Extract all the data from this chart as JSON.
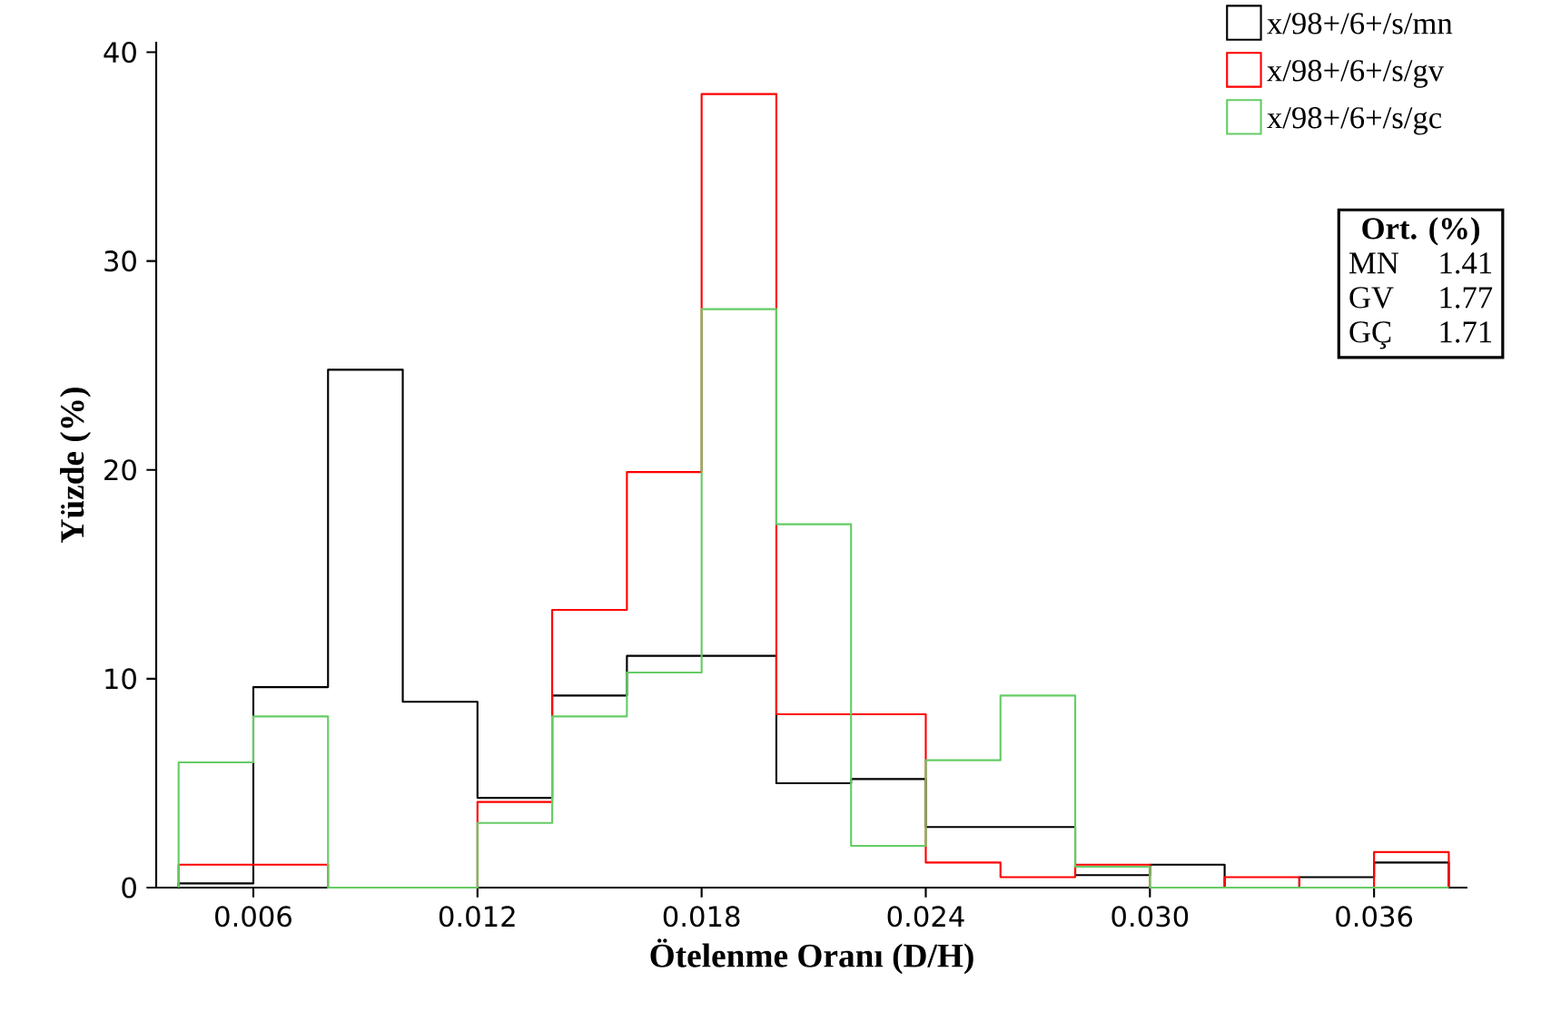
{
  "chart_data": {
    "type": "histogram",
    "xlabel": "Ötelenme Oranı (D/H)",
    "ylabel": "Yüzde (%)",
    "bins": [
      0.004,
      0.006,
      0.008,
      0.01,
      0.012,
      0.014,
      0.016,
      0.018,
      0.02,
      0.022,
      0.024,
      0.026,
      0.028,
      0.03,
      0.032,
      0.034,
      0.036,
      0.038
    ],
    "series": [
      {
        "name": "x/98+/6+/s/mn",
        "color": "#000000",
        "values": [
          0.2,
          9.6,
          24.8,
          8.9,
          4.3,
          9.2,
          11.1,
          11.1,
          5.0,
          5.2,
          2.9,
          2.9,
          0.6,
          1.1,
          0,
          0.5,
          1.2
        ]
      },
      {
        "name": "x/98+/6+/s/gv",
        "color": "#ff0000",
        "values": [
          1.1,
          1.1,
          0,
          0,
          4.1,
          13.3,
          19.9,
          38.0,
          8.3,
          8.3,
          1.2,
          0.5,
          1.1,
          0,
          0.5,
          0,
          1.7
        ]
      },
      {
        "name": "x/98+/6+/s/gc",
        "color": "#66cc66",
        "values": [
          6.0,
          8.2,
          0,
          0,
          3.1,
          8.2,
          10.3,
          27.7,
          17.4,
          2.0,
          6.1,
          9.2,
          1.0,
          0,
          0,
          0,
          0
        ]
      }
    ],
    "xlim": [
      0.0034,
      0.0385
    ],
    "ylim": [
      0,
      40.5
    ],
    "xticks": [
      0.006,
      0.012,
      0.018,
      0.024,
      {
        "value": 0.03,
        "label": "0.030"
      },
      0.036
    ],
    "yticks": [
      0,
      10,
      20,
      30,
      40
    ],
    "legend": "top right",
    "annotations": [
      "Ort. (%)",
      "MN",
      "1.41",
      "GV",
      "1.77",
      "GÇ",
      "1.71"
    ]
  }
}
